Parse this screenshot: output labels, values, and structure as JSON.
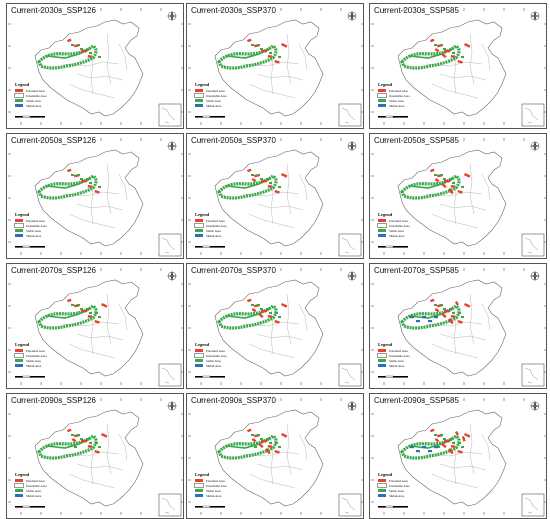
{
  "panels": [
    {
      "title": "Current-2030s_SSP126"
    },
    {
      "title": "Current-2030s_SSP370"
    },
    {
      "title": "Current-2030s_SSP585"
    },
    {
      "title": "Current-2050s_SSP126"
    },
    {
      "title": "Current-2050s_SSP370"
    },
    {
      "title": "Current-2050s_SSP585"
    },
    {
      "title": "Current-2070s_SSP126"
    },
    {
      "title": "Current-2070s_SSP370"
    },
    {
      "title": "Current-2070s_SSP585"
    },
    {
      "title": "Current-2090s_SSP126"
    },
    {
      "title": "Current-2090s_SSP370"
    },
    {
      "title": "Current-2090s_SSP585"
    }
  ],
  "legend": {
    "title": "Legend",
    "items": [
      {
        "label": "Extended Area",
        "color": "#e8402a"
      },
      {
        "label": "Unsuitable Area",
        "color": "#ffffff"
      },
      {
        "label": "Stable Area",
        "color": "#3aa84a"
      },
      {
        "label": "Shrink Area",
        "color": "#2f6fb5"
      }
    ]
  },
  "colors": {
    "extended": "#e8402a",
    "stable": "#3aa84a",
    "shrink": "#2f6fb5",
    "outline": "#666666"
  },
  "icons": {
    "compass": "north-arrow-icon",
    "inset": "south-china-sea-inset"
  }
}
